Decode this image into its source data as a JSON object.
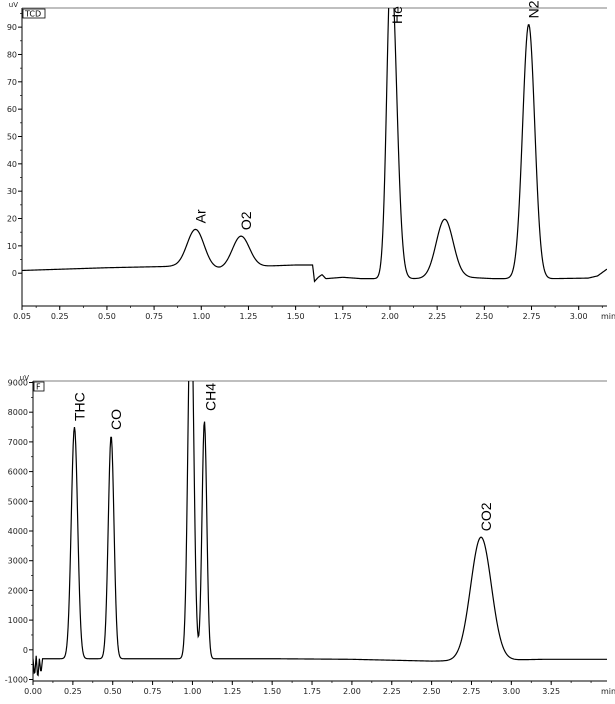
{
  "chart_data": [
    {
      "type": "line",
      "title": "",
      "detector_tag": "TCD",
      "y_unit": "uV",
      "x_unit": "min",
      "xlim": [
        0.05,
        3.15
      ],
      "ylim": [
        -12,
        97
      ],
      "x_ticks": [
        "0.05",
        "0.25",
        "0.50",
        "0.75",
        "1.00",
        "1.25",
        "1.50",
        "1.75",
        "2.00",
        "2.25",
        "2.50",
        "2.75",
        "3.00"
      ],
      "x_tick_values": [
        0.05,
        0.25,
        0.5,
        0.75,
        1.0,
        1.25,
        1.5,
        1.75,
        2.0,
        2.25,
        2.5,
        2.75,
        3.0
      ],
      "y_ticks": [
        "0",
        "10",
        "20",
        "30",
        "40",
        "50",
        "60",
        "70",
        "80",
        "90"
      ],
      "y_tick_values": [
        0,
        10,
        20,
        30,
        40,
        50,
        60,
        70,
        80,
        90
      ],
      "baseline": [
        [
          0.05,
          1.0
        ],
        [
          0.5,
          2.0
        ],
        [
          0.85,
          2.5
        ],
        [
          1.1,
          1.5
        ],
        [
          1.3,
          2.5
        ],
        [
          1.5,
          3.0
        ],
        [
          1.59,
          3.0
        ],
        [
          1.6,
          -3.0
        ],
        [
          1.62,
          -1.5
        ],
        [
          1.64,
          -0.5
        ],
        [
          1.66,
          -2.0
        ],
        [
          1.75,
          -1.5
        ],
        [
          1.85,
          -2.0
        ],
        [
          1.92,
          -2.0
        ],
        [
          2.1,
          -2.0
        ],
        [
          2.2,
          -2.0
        ],
        [
          2.4,
          -1.5
        ],
        [
          2.55,
          -2.0
        ],
        [
          2.65,
          -2.0
        ],
        [
          2.85,
          -2.0
        ],
        [
          3.05,
          -1.8
        ],
        [
          3.1,
          -1.0
        ],
        [
          3.15,
          1.5
        ]
      ],
      "peaks": [
        {
          "label": "Ar",
          "rt": 0.97,
          "height": 14.0,
          "width": 0.045
        },
        {
          "label": "O2",
          "rt": 1.21,
          "height": 11.5,
          "width": 0.045
        },
        {
          "label": "He",
          "rt": 2.005,
          "height": 115,
          "width": 0.03,
          "left_width": 0.022
        },
        {
          "label": "",
          "rt": 2.29,
          "height": 21.5,
          "width": 0.045
        },
        {
          "label": "N2",
          "rt": 2.735,
          "height": 93,
          "width": 0.032
        }
      ]
    },
    {
      "type": "line",
      "title": "",
      "detector_tag": "F",
      "y_unit": "uV",
      "x_unit": "min",
      "xlim": [
        0.0,
        3.6
      ],
      "ylim": [
        -1050,
        9050
      ],
      "x_ticks": [
        "0.00",
        "0.25",
        "0.50",
        "0.75",
        "1.00",
        "1.25",
        "1.50",
        "1.75",
        "2.00",
        "2.25",
        "2.50",
        "2.75",
        "3.00",
        "3.25"
      ],
      "x_tick_values": [
        0,
        0.25,
        0.5,
        0.75,
        1.0,
        1.25,
        1.5,
        1.75,
        2.0,
        2.25,
        2.5,
        2.75,
        3.0,
        3.25
      ],
      "y_ticks": [
        "-1000",
        "0",
        "1000",
        "2000",
        "3000",
        "4000",
        "5000",
        "6000",
        "7000",
        "8000",
        "9000"
      ],
      "y_tick_values": [
        -1000,
        0,
        1000,
        2000,
        3000,
        4000,
        5000,
        6000,
        7000,
        8000,
        9000
      ],
      "baseline": [
        [
          0.0,
          -300
        ],
        [
          0.01,
          -900
        ],
        [
          0.02,
          -200
        ],
        [
          0.03,
          -1000
        ],
        [
          0.04,
          -300
        ],
        [
          0.05,
          -800
        ],
        [
          0.06,
          -300
        ],
        [
          0.08,
          -300
        ],
        [
          0.2,
          -300
        ],
        [
          0.5,
          -300
        ],
        [
          1.0,
          -300
        ],
        [
          1.5,
          -300
        ],
        [
          2.0,
          -320
        ],
        [
          2.5,
          -380
        ],
        [
          2.8,
          -360
        ],
        [
          3.2,
          -320
        ],
        [
          3.6,
          -320
        ]
      ],
      "peaks": [
        {
          "label": "THC",
          "rt": 0.26,
          "height": 7800,
          "width": 0.02
        },
        {
          "label": "CO",
          "rt": 0.49,
          "height": 7500,
          "width": 0.018
        },
        {
          "label": "",
          "rt": 0.99,
          "height": 12500,
          "width": 0.018
        },
        {
          "label": "CH4",
          "rt": 1.075,
          "height": 8000,
          "width": 0.015
        },
        {
          "label": "CO2",
          "rt": 2.81,
          "height": 4150,
          "width": 0.065
        }
      ]
    }
  ]
}
